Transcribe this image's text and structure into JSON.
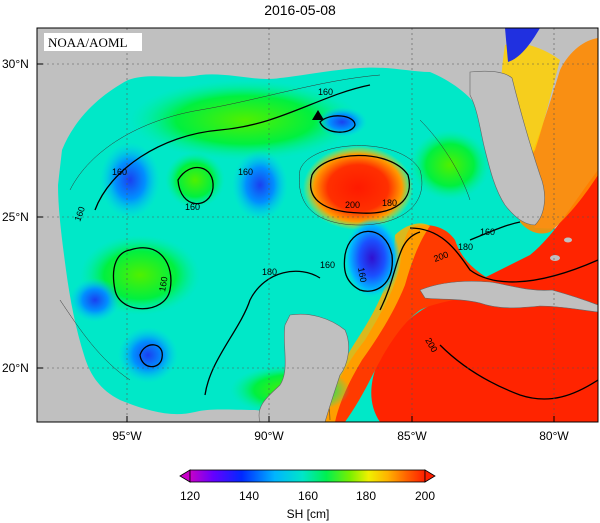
{
  "title": "2016-05-08",
  "credit": "NOAA/AOML",
  "lat_labels": [
    "30°N",
    "25°N",
    "20°N"
  ],
  "lon_labels": [
    "95°W",
    "90°W",
    "85°W",
    "80°W"
  ],
  "contour_labels": [
    "160",
    "160",
    "160",
    "160",
    "160",
    "160",
    "160",
    "180",
    "180",
    "180",
    "200",
    "200",
    "200",
    "160",
    "160"
  ],
  "colorbar": {
    "label": "SH [cm]",
    "ticks": [
      "120",
      "140",
      "160",
      "180",
      "200"
    ],
    "colors": [
      "#c800c8",
      "#6400ff",
      "#0028ff",
      "#00b4ff",
      "#00e6c8",
      "#00f050",
      "#78f000",
      "#f0f000",
      "#ffb400",
      "#ff6400",
      "#ff1e00"
    ]
  },
  "colors": {
    "land": "#c0c0c0",
    "warm_core": "#ff2a00",
    "cold_core": "#2a28d8"
  }
}
